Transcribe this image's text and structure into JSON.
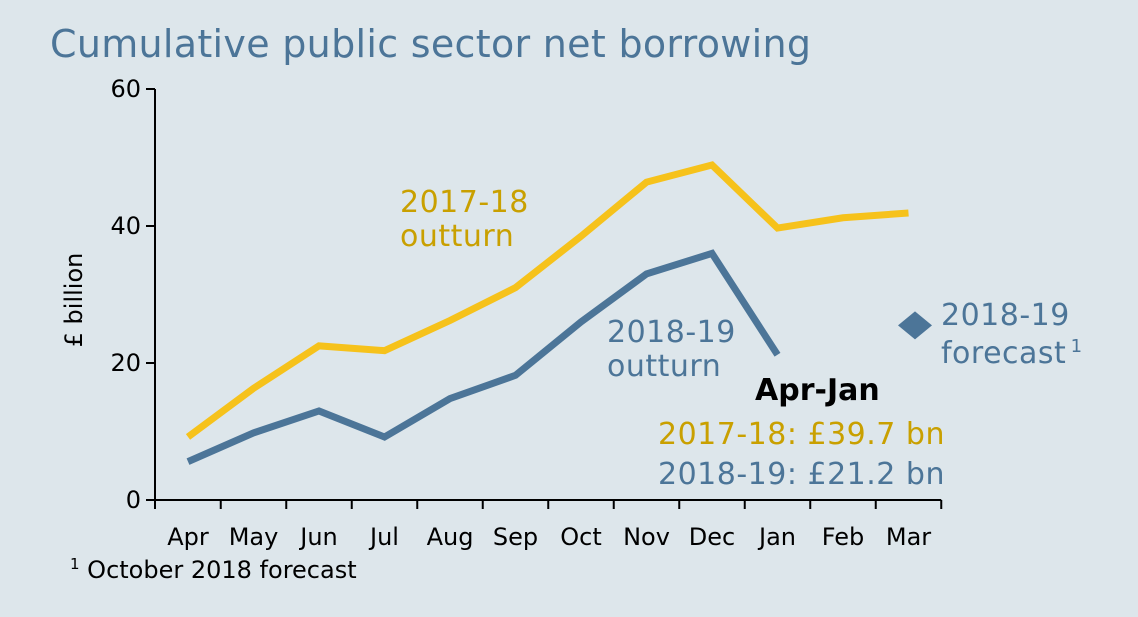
{
  "chart_data": {
    "type": "line",
    "title": "Cumulative public sector net borrowing",
    "ylabel": "£ billion",
    "xlabel": "",
    "ylim": [
      0,
      60
    ],
    "yticks": [
      0,
      20,
      40,
      60
    ],
    "categories": [
      "Apr",
      "May",
      "Jun",
      "Jul",
      "Aug",
      "Sep",
      "Oct",
      "Nov",
      "Dec",
      "Jan",
      "Feb",
      "Mar"
    ],
    "grid": false,
    "series": [
      {
        "name_lines": [
          "2017-18",
          "outturn"
        ],
        "color": "#f6c21b",
        "values": [
          9.2,
          16.3,
          22.5,
          21.8,
          26.2,
          31.0,
          38.5,
          46.4,
          48.9,
          39.7,
          41.2,
          41.9
        ]
      },
      {
        "name_lines": [
          "2018-19",
          "outturn"
        ],
        "color": "#4c7598",
        "values": [
          5.6,
          9.8,
          13.0,
          9.2,
          14.8,
          18.2,
          26.0,
          33.0,
          36.0,
          21.2,
          null,
          null
        ]
      }
    ],
    "forecast": {
      "label_lines": [
        "2018-19",
        "forecast"
      ],
      "superscript": "1",
      "color": "#4c7598",
      "value": 25.5
    },
    "summary": {
      "title": "Apr-Jan",
      "lines": [
        {
          "text": "2017-18: £39.7 bn",
          "color": "#c9a000"
        },
        {
          "text": "2018-19: £21.2 bn",
          "color": "#4c7598"
        }
      ]
    }
  },
  "footnote": {
    "marker": "1",
    "text": " October 2018 forecast"
  }
}
